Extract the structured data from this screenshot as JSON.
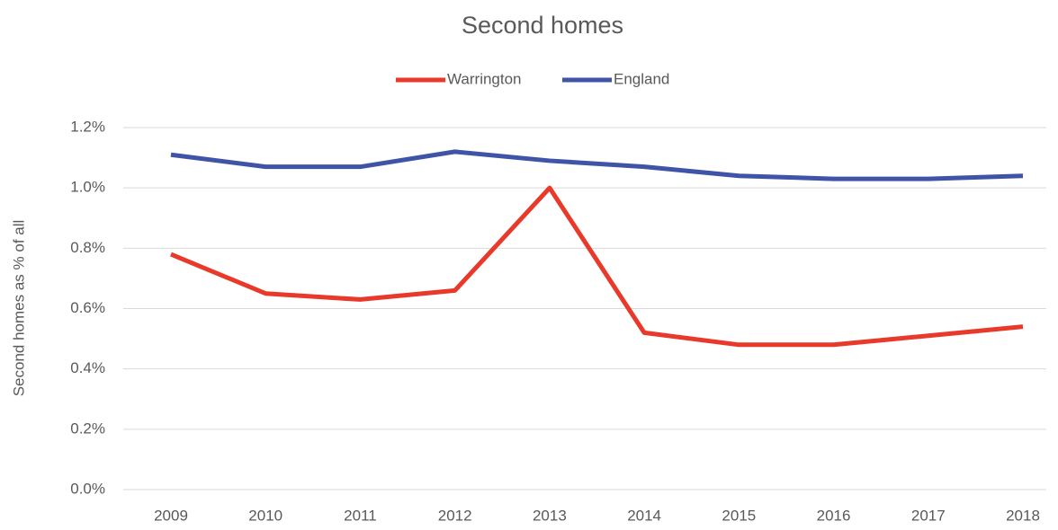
{
  "chart_data": {
    "type": "line",
    "title": "Second homes",
    "y_label": "Second homes as % of all",
    "categories": [
      "2009",
      "2010",
      "2011",
      "2012",
      "2013",
      "2014",
      "2015",
      "2016",
      "2017",
      "2018"
    ],
    "series": [
      {
        "name": "Warrington",
        "color": "#e8392a",
        "values": [
          0.78,
          0.65,
          0.63,
          0.66,
          1.0,
          0.52,
          0.48,
          0.48,
          0.51,
          0.54
        ]
      },
      {
        "name": "England",
        "color": "#3f54a7",
        "values": [
          1.11,
          1.07,
          1.07,
          1.12,
          1.09,
          1.07,
          1.04,
          1.03,
          1.03,
          1.04
        ]
      }
    ],
    "ylim": [
      0,
      1.2
    ],
    "yticks": [
      {
        "value": 0,
        "label": "0.0%"
      },
      {
        "value": 0.2,
        "label": "0.2%"
      },
      {
        "value": 0.4,
        "label": "0.4%"
      },
      {
        "value": 0.6,
        "label": "0.6%"
      },
      {
        "value": 0.8,
        "label": "0.8%"
      },
      {
        "value": 1.0,
        "label": "1.0%"
      },
      {
        "value": 1.2,
        "label": "1.2%"
      }
    ],
    "grid": true,
    "legend": "top"
  }
}
